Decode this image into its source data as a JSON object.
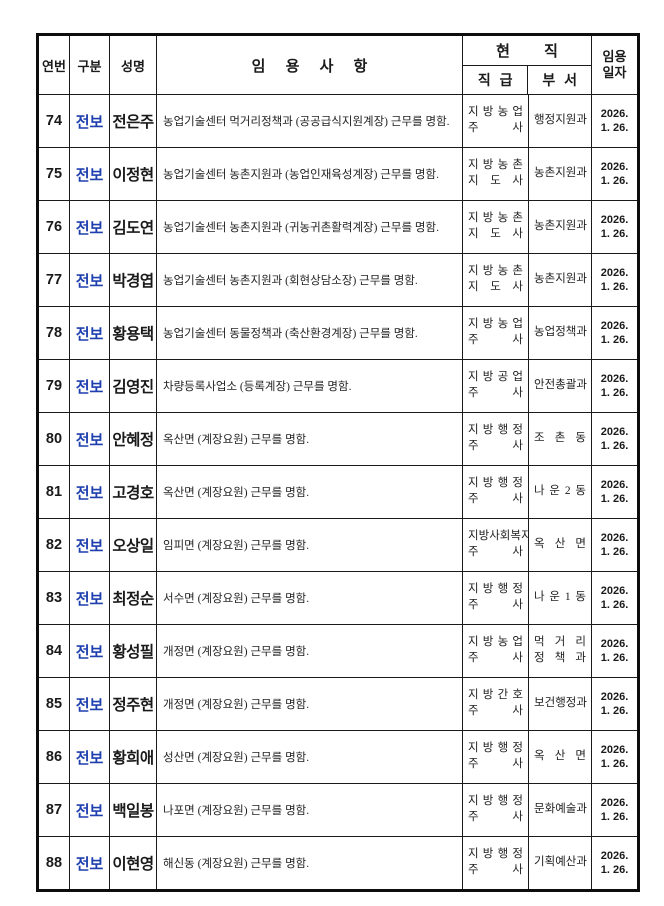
{
  "colors": {
    "category_blue": "#1e3fae",
    "border": "#1a1a1a",
    "text": "#1a1a1a"
  },
  "header": {
    "col_no": "연번",
    "col_category": "구분",
    "col_name": "성명",
    "col_details": "임 용 사 항",
    "col_current": "현 직",
    "col_rank": "직 급",
    "col_dept": "부 서",
    "col_date": "임용\n일자"
  },
  "rows": [
    {
      "no": "74",
      "category": "전보",
      "name": "전은주",
      "details": "농업기술센터 먹거리정책과 (공공급식지원계장) 근무를 명함.",
      "rank_lines": [
        "지방농업",
        "주사"
      ],
      "dept_lines": [
        "행정지원과"
      ],
      "date": "2026.\n1. 26."
    },
    {
      "no": "75",
      "category": "전보",
      "name": "이정현",
      "details": "농업기술센터 농촌지원과 (농업인재육성계장) 근무를 명함.",
      "rank_lines": [
        "지방농촌",
        "지도사"
      ],
      "dept_lines": [
        "농촌지원과"
      ],
      "date": "2026.\n1. 26."
    },
    {
      "no": "76",
      "category": "전보",
      "name": "김도연",
      "details": "농업기술센터 농촌지원과 (귀농귀촌활력계장) 근무를 명함.",
      "rank_lines": [
        "지방농촌",
        "지도사"
      ],
      "dept_lines": [
        "농촌지원과"
      ],
      "date": "2026.\n1. 26."
    },
    {
      "no": "77",
      "category": "전보",
      "name": "박경엽",
      "details": "농업기술센터 농촌지원과 (회현상담소장) 근무를 명함.",
      "rank_lines": [
        "지방농촌",
        "지도사"
      ],
      "dept_lines": [
        "농촌지원과"
      ],
      "date": "2026.\n1. 26."
    },
    {
      "no": "78",
      "category": "전보",
      "name": "황용택",
      "details": "농업기술센터 동물정책과 (축산환경계장) 근무를 명함.",
      "rank_lines": [
        "지방농업",
        "주사"
      ],
      "dept_lines": [
        "농업정책과"
      ],
      "date": "2026.\n1. 26."
    },
    {
      "no": "79",
      "category": "전보",
      "name": "김영진",
      "details": "차량등록사업소 (등록계장) 근무를 명함.",
      "rank_lines": [
        "지방공업",
        "주사"
      ],
      "dept_lines": [
        "안전총괄과"
      ],
      "date": "2026.\n1. 26."
    },
    {
      "no": "80",
      "category": "전보",
      "name": "안혜정",
      "details": "옥산면 (계장요원) 근무를 명함.",
      "rank_lines": [
        "지방행정",
        "주사"
      ],
      "dept_lines": [
        "조촌동"
      ],
      "date": "2026.\n1. 26."
    },
    {
      "no": "81",
      "category": "전보",
      "name": "고경호",
      "details": "옥산면 (계장요원) 근무를 명함.",
      "rank_lines": [
        "지방행정",
        "주사"
      ],
      "dept_lines": [
        "나운2동"
      ],
      "date": "2026.\n1. 26."
    },
    {
      "no": "82",
      "category": "전보",
      "name": "오상일",
      "details": "임피면 (계장요원) 근무를 명함.",
      "rank_lines": [
        "지방사회복지",
        "주사"
      ],
      "dept_lines": [
        "옥산면"
      ],
      "date": "2026.\n1. 26."
    },
    {
      "no": "83",
      "category": "전보",
      "name": "최정순",
      "details": "서수면 (계장요원) 근무를 명함.",
      "rank_lines": [
        "지방행정",
        "주사"
      ],
      "dept_lines": [
        "나운1동"
      ],
      "date": "2026.\n1. 26."
    },
    {
      "no": "84",
      "category": "전보",
      "name": "황성필",
      "details": "개정면 (계장요원) 근무를 명함.",
      "rank_lines": [
        "지방농업",
        "주사"
      ],
      "dept_lines": [
        "먹거리",
        "정책과"
      ],
      "date": "2026.\n1. 26."
    },
    {
      "no": "85",
      "category": "전보",
      "name": "정주현",
      "details": "개정면 (계장요원) 근무를 명함.",
      "rank_lines": [
        "지방간호",
        "주사"
      ],
      "dept_lines": [
        "보건행정과"
      ],
      "date": "2026.\n1. 26."
    },
    {
      "no": "86",
      "category": "전보",
      "name": "황희애",
      "details": "성산면 (계장요원) 근무를 명함.",
      "rank_lines": [
        "지방행정",
        "주사"
      ],
      "dept_lines": [
        "옥산면"
      ],
      "date": "2026.\n1. 26."
    },
    {
      "no": "87",
      "category": "전보",
      "name": "백일봉",
      "details": "나포면 (계장요원) 근무를 명함.",
      "rank_lines": [
        "지방행정",
        "주사"
      ],
      "dept_lines": [
        "문화예술과"
      ],
      "date": "2026.\n1. 26."
    },
    {
      "no": "88",
      "category": "전보",
      "name": "이현영",
      "details": "해신동 (계장요원) 근무를 명함.",
      "rank_lines": [
        "지방행정",
        "주사"
      ],
      "dept_lines": [
        "기획예산과"
      ],
      "date": "2026.\n1. 26."
    }
  ]
}
